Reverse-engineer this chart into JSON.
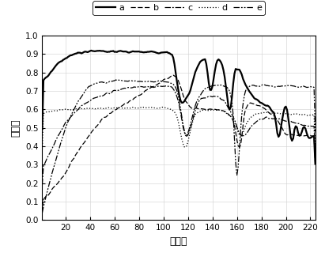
{
  "xlabel": "波段号",
  "ylabel": "光谱値",
  "xlim": [
    1,
    224
  ],
  "ylim": [
    0,
    1
  ],
  "xticks": [
    20,
    40,
    60,
    80,
    100,
    120,
    140,
    160,
    180,
    200,
    220
  ],
  "yticks": [
    0,
    0.1,
    0.2,
    0.3,
    0.4,
    0.5,
    0.6,
    0.7,
    0.8,
    0.9,
    1
  ],
  "legend_labels": [
    "a",
    "b",
    "c",
    "d",
    "e"
  ],
  "background_color": "#ffffff",
  "grid_color": "#d0d0d0",
  "figsize": [
    4.11,
    3.2
  ],
  "dpi": 100
}
